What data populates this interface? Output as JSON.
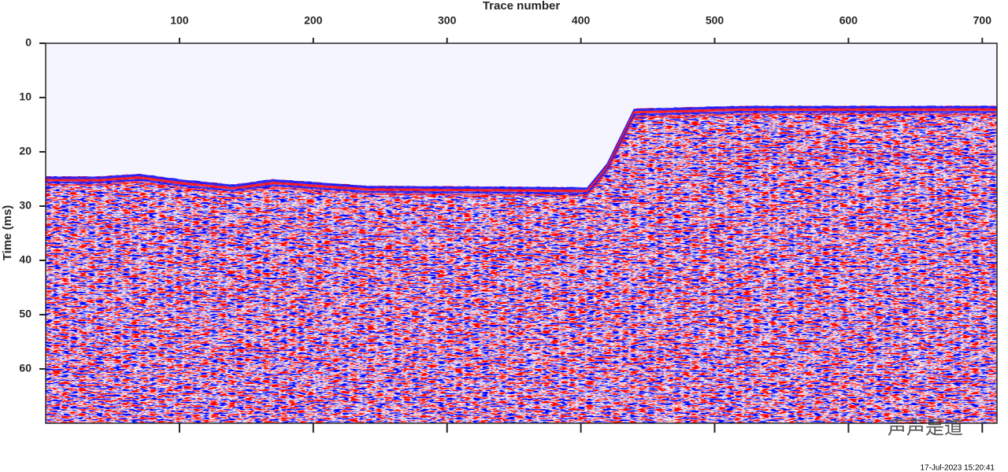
{
  "chart_data": {
    "type": "seismic",
    "x_label": "Trace number",
    "y_label": "Time (ms)",
    "xlim": [
      0,
      711
    ],
    "xticks": [
      100,
      200,
      300,
      400,
      500,
      600,
      700
    ],
    "ylim": [
      0,
      70
    ],
    "yticks": [
      0,
      10,
      20,
      30,
      40,
      50,
      60
    ],
    "y_inverted": true,
    "x_axis_position": "top",
    "colormap": [
      "#0000ff",
      "#ffffff",
      "#ff0000"
    ],
    "timestamp": "17-Jul-2023 15:20:41",
    "watermark": "声声是道"
  }
}
